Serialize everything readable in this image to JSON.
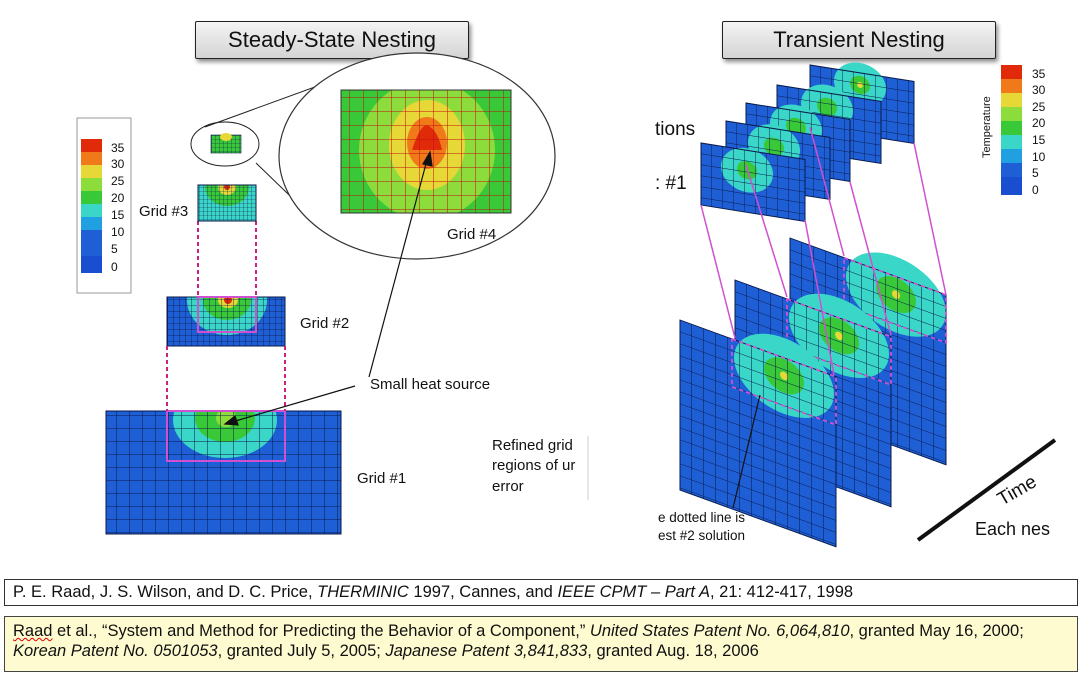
{
  "titles": {
    "left": "Steady-State Nesting",
    "right": "Transient Nesting"
  },
  "legend_left": {
    "ticks": [
      "35",
      "30",
      "25",
      "20",
      "15",
      "10",
      "5",
      "0"
    ]
  },
  "legend_right": {
    "title": "Temperature",
    "ticks": [
      "35",
      "30",
      "25",
      "20",
      "15",
      "10",
      "5",
      "0"
    ]
  },
  "colors": {
    "blue": "#1f5fd6",
    "cyan": "#3ad6c8",
    "green": "#38c838",
    "lightgreen": "#8cdd3c",
    "yellow": "#e6d836",
    "orange": "#f07a1a",
    "red": "#e02a0a",
    "magenta": "#d050d0"
  },
  "labels": {
    "grid1": "Grid #1",
    "grid2": "Grid #2",
    "grid3": "Grid #3",
    "grid4": "Grid #4",
    "small_heat_source": "Small heat source",
    "refined_line1": "Refined grid",
    "refined_line2": "regions of ur",
    "refined_line3": "error",
    "right_frag1": "tions",
    "right_frag2": ": #1",
    "time": "Time",
    "each_nes": "Each nes",
    "dotted1": "e dotted line is",
    "dotted2": "est #2 solution"
  },
  "citation1": {
    "authors": "P. E. Raad, J. S. Wilson, and D. C. Price, ",
    "venue": "THERMINIC",
    "mid": " 1997, Cannes, and ",
    "journal": "IEEE CPMT – Part A",
    "rest": ", 21: 412-417, 1998"
  },
  "citation2": {
    "lead": "Raad",
    "p1": " et al., “System and Method for Predicting the Behavior of a Component,” ",
    "patent1": "United States Patent No. 6,064,810",
    "p2": ", granted May 16, 2000;  ",
    "patent2": "Korean Patent No. 0501053",
    "p3": ", granted July 5, 2005; ",
    "patent3": "Japanese Patent 3,841,833",
    "p4": ", granted Aug. 18, 2006"
  }
}
